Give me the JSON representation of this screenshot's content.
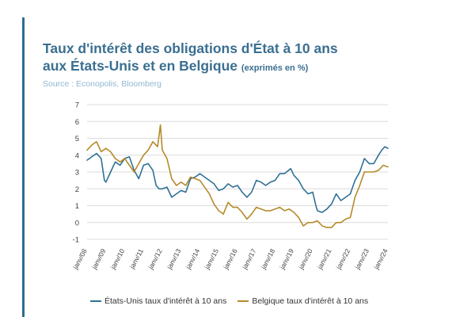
{
  "header": {
    "title_line1": "Taux d'intérêt des obligations d'État à 10 ans",
    "title_line2": "aux États-Unis et en Belgique",
    "title_unit": "(exprimés en %)",
    "source": "Source : Econopolis, Bloomberg"
  },
  "colors": {
    "us": "#2f7196",
    "be": "#b58a2a",
    "grid": "#dcdcdc",
    "accent": "#2f6c8f"
  },
  "chart_data": {
    "type": "line",
    "title": "Taux d'intérêt des obligations d'État à 10 ans aux États-Unis et en Belgique (exprimés en %)",
    "xlabel": "",
    "ylabel": "",
    "ylim": [
      -1,
      7
    ],
    "yticks": [
      "7",
      "6",
      "5",
      "4",
      "3",
      "2",
      "1",
      "0",
      "-1"
    ],
    "xlim": [
      2008.0,
      2024.0
    ],
    "xticks": [
      "janv/08",
      "janv/09",
      "janv/10",
      "janv/11",
      "janv/12",
      "janv/13",
      "janv/14",
      "janv/15",
      "janv/16",
      "janv/17",
      "janv/18",
      "janv/19",
      "janv/20",
      "janv/21",
      "janv/22",
      "janv/23",
      "janv/24"
    ],
    "grid": true,
    "legend_position": "bottom",
    "series": [
      {
        "name": "États-Unis taux d'intérêt à 10 ans",
        "color": "#2f7196",
        "x": [
          2008.0,
          2008.25,
          2008.5,
          2008.75,
          2008.92,
          2009.0,
          2009.25,
          2009.5,
          2009.75,
          2010.0,
          2010.25,
          2010.5,
          2010.75,
          2011.0,
          2011.25,
          2011.5,
          2011.67,
          2011.83,
          2012.0,
          2012.25,
          2012.5,
          2012.75,
          2013.0,
          2013.25,
          2013.5,
          2013.75,
          2014.0,
          2014.25,
          2014.5,
          2014.75,
          2015.0,
          2015.25,
          2015.5,
          2015.75,
          2016.0,
          2016.25,
          2016.5,
          2016.75,
          2017.0,
          2017.25,
          2017.5,
          2017.75,
          2018.0,
          2018.25,
          2018.5,
          2018.83,
          2019.0,
          2019.25,
          2019.5,
          2019.75,
          2020.0,
          2020.17,
          2020.25,
          2020.5,
          2020.75,
          2021.0,
          2021.25,
          2021.5,
          2021.75,
          2022.0,
          2022.25,
          2022.5,
          2022.75,
          2023.0,
          2023.25,
          2023.5,
          2023.67,
          2023.83,
          2024.0
        ],
        "values": [
          3.7,
          3.9,
          4.1,
          3.8,
          2.5,
          2.4,
          3.0,
          3.6,
          3.4,
          3.8,
          3.9,
          3.1,
          2.6,
          3.4,
          3.5,
          3.1,
          2.2,
          2.0,
          2.0,
          2.1,
          1.5,
          1.7,
          1.9,
          1.8,
          2.6,
          2.7,
          2.9,
          2.7,
          2.5,
          2.3,
          1.9,
          2.0,
          2.3,
          2.1,
          2.2,
          1.8,
          1.5,
          1.8,
          2.5,
          2.4,
          2.2,
          2.4,
          2.5,
          2.9,
          2.9,
          3.2,
          2.8,
          2.5,
          2.0,
          1.7,
          1.8,
          1.0,
          0.7,
          0.6,
          0.8,
          1.1,
          1.7,
          1.3,
          1.5,
          1.7,
          2.5,
          3.0,
          3.8,
          3.5,
          3.5,
          4.0,
          4.3,
          4.5,
          4.4
        ]
      },
      {
        "name": "Belgique taux d'intérêt à 10 ans",
        "color": "#b58a2a",
        "x": [
          2008.0,
          2008.25,
          2008.5,
          2008.75,
          2009.0,
          2009.25,
          2009.5,
          2009.75,
          2010.0,
          2010.25,
          2010.5,
          2010.75,
          2011.0,
          2011.25,
          2011.5,
          2011.75,
          2011.9,
          2012.0,
          2012.25,
          2012.5,
          2012.75,
          2013.0,
          2013.25,
          2013.5,
          2013.75,
          2014.0,
          2014.25,
          2014.5,
          2014.75,
          2015.0,
          2015.25,
          2015.5,
          2015.75,
          2016.0,
          2016.25,
          2016.5,
          2016.75,
          2017.0,
          2017.25,
          2017.5,
          2017.75,
          2018.0,
          2018.25,
          2018.5,
          2018.75,
          2019.0,
          2019.25,
          2019.5,
          2019.75,
          2020.0,
          2020.25,
          2020.5,
          2020.75,
          2021.0,
          2021.25,
          2021.5,
          2021.75,
          2022.0,
          2022.25,
          2022.5,
          2022.75,
          2023.0,
          2023.25,
          2023.5,
          2023.75,
          2024.0
        ],
        "values": [
          4.3,
          4.6,
          4.8,
          4.2,
          4.4,
          4.2,
          3.8,
          3.6,
          3.8,
          3.4,
          3.0,
          3.5,
          4.0,
          4.3,
          4.8,
          4.5,
          5.8,
          4.3,
          3.8,
          2.6,
          2.2,
          2.4,
          2.2,
          2.7,
          2.6,
          2.5,
          2.1,
          1.7,
          1.1,
          0.7,
          0.5,
          1.2,
          0.9,
          0.9,
          0.6,
          0.2,
          0.5,
          0.9,
          0.8,
          0.7,
          0.7,
          0.8,
          0.9,
          0.7,
          0.8,
          0.6,
          0.3,
          -0.2,
          0.0,
          0.0,
          0.1,
          -0.2,
          -0.3,
          -0.3,
          0.0,
          0.0,
          0.2,
          0.3,
          1.5,
          2.2,
          3.0,
          3.0,
          3.0,
          3.1,
          3.4,
          3.3
        ]
      }
    ]
  }
}
